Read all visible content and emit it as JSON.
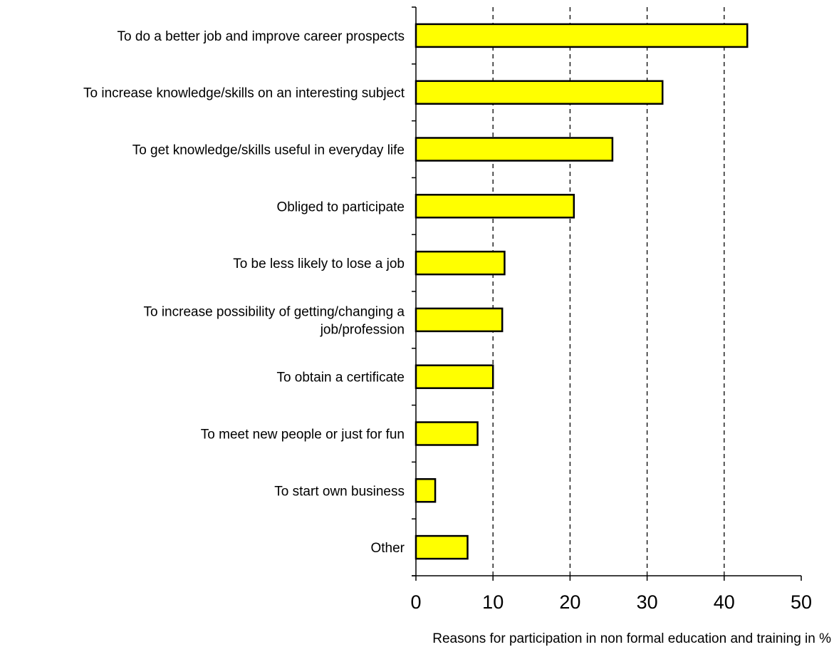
{
  "chart_data": {
    "type": "bar",
    "orientation": "horizontal",
    "title": "",
    "xlabel": "Reasons for participation in non formal education and training in %",
    "ylabel": "",
    "xlim": [
      0,
      50
    ],
    "x_ticks": [
      0,
      10,
      20,
      30,
      40,
      50
    ],
    "grid": "vertical dashed lines at 10, 20, 30, 40",
    "legend": "none",
    "bar_color": "#ffff00",
    "bar_edge_color": "#000000",
    "categories": [
      "To do a better job and improve career prospects",
      "To increase knowledge/skills on an interesting subject",
      "To get knowledge/skills useful in everyday life",
      "Obliged to participate",
      "To be less likely to lose a job",
      "To increase possibility of getting/changing a job/profession",
      "To obtain a certificate",
      "To meet new people or just for fun",
      "To start own business",
      "Other"
    ],
    "category_label_lines": [
      [
        "To do a better job and improve career prospects"
      ],
      [
        "To increase knowledge/skills on an interesting subject"
      ],
      [
        "To get knowledge/skills useful in everyday life"
      ],
      [
        "Obliged to participate"
      ],
      [
        "To be less likely to lose a job"
      ],
      [
        "To increase possibility of getting/changing a",
        "job/profession"
      ],
      [
        "To obtain a certificate"
      ],
      [
        "To meet new people or just for fun"
      ],
      [
        "To start own business"
      ],
      [
        "Other"
      ]
    ],
    "values": [
      43,
      32,
      25.5,
      20.5,
      11.5,
      11.2,
      10,
      8,
      2.5,
      6.7
    ]
  }
}
